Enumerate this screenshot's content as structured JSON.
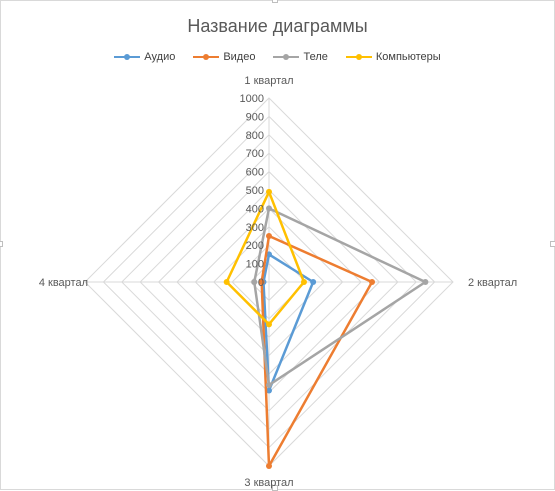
{
  "chart_data": {
    "type": "radar",
    "title": "Название диаграммы",
    "categories": [
      "1 квартал",
      "2 квартал",
      "3 квартал",
      "4 квартал"
    ],
    "rlim": [
      0,
      1000
    ],
    "r_ticks": [
      "0",
      "100",
      "200",
      "300",
      "400",
      "500",
      "600",
      "700",
      "800",
      "900",
      "1000"
    ],
    "grid": true,
    "legend_position": "top",
    "series": [
      {
        "name": "Аудио",
        "color": "#5B9BD5",
        "values": [
          150,
          240,
          590,
          30
        ]
      },
      {
        "name": "Видео",
        "color": "#ED7D31",
        "values": [
          250,
          560,
          1000,
          40
        ]
      },
      {
        "name": "Теле",
        "color": "#A5A5A5",
        "values": [
          400,
          850,
          560,
          80
        ]
      },
      {
        "name": "Компьютеры",
        "color": "#FFC000",
        "values": [
          490,
          190,
          230,
          230
        ]
      }
    ]
  }
}
